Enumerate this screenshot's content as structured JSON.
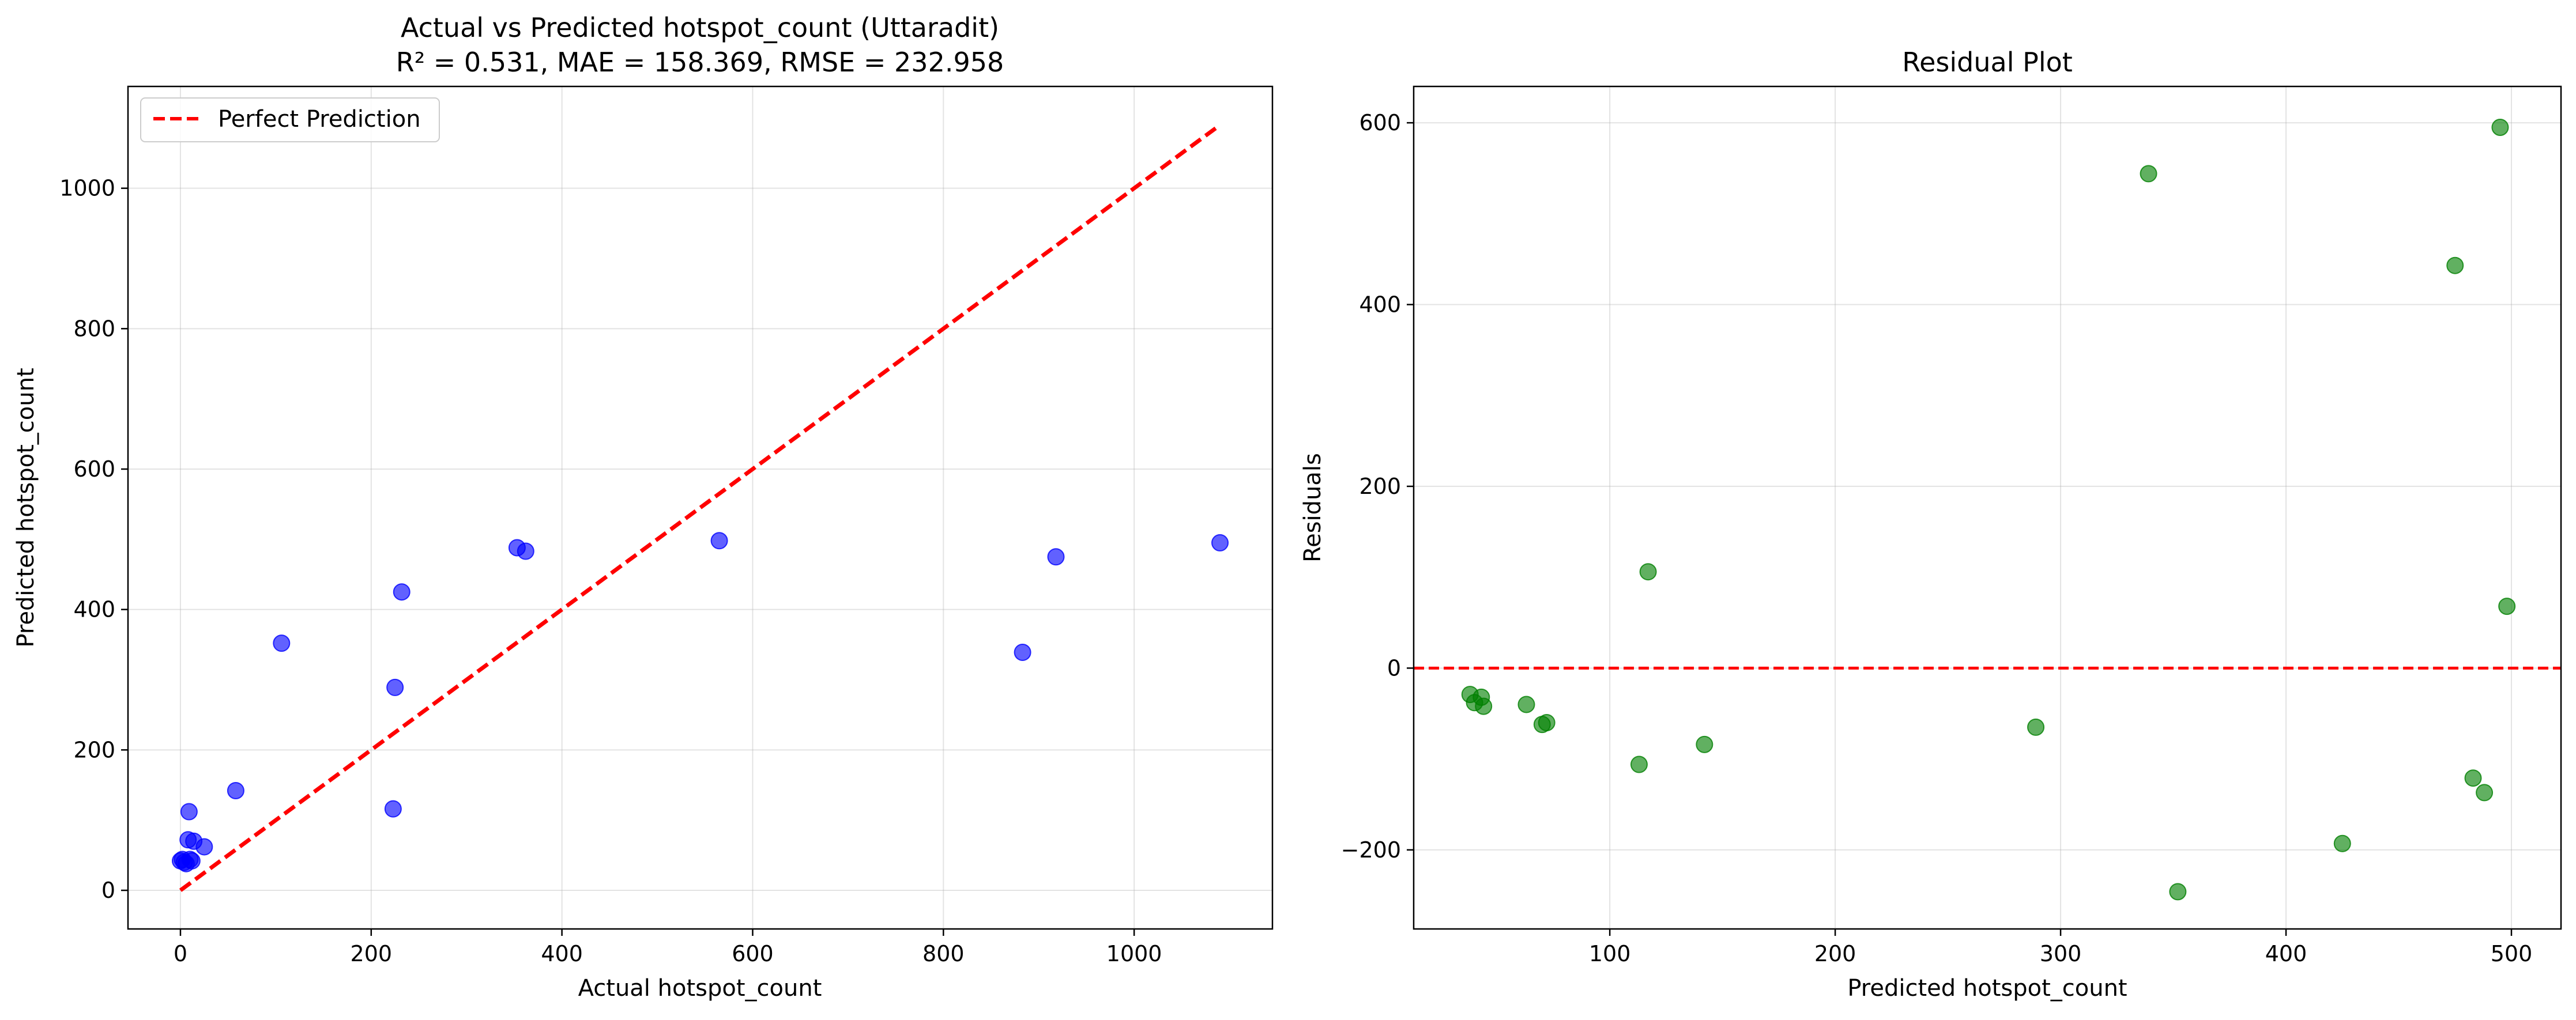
{
  "chart_data": [
    {
      "type": "scatter",
      "title": "Actual vs Predicted hotspot_count (Uttaradit)",
      "subtitle": "R² = 0.531, MAE = 158.369, RMSE = 232.958",
      "xlabel": "Actual hotspot_count",
      "ylabel": "Predicted hotspot_count",
      "xlim": [
        -55,
        1145
      ],
      "ylim": [
        -55,
        1145
      ],
      "xticks": [
        0,
        200,
        400,
        600,
        800,
        1000
      ],
      "yticks": [
        0,
        200,
        400,
        600,
        800,
        1000
      ],
      "grid": true,
      "legend": {
        "placement": "top-left",
        "entries": [
          "Perfect Prediction"
        ]
      },
      "reference_line": {
        "name": "Perfect Prediction",
        "from": [
          0,
          0
        ],
        "to": [
          1090,
          1090
        ],
        "color": "#ff0000",
        "style": "dashed"
      },
      "point_color": "#0000ff",
      "points": [
        {
          "x": 0,
          "y": 42
        },
        {
          "x": 2,
          "y": 44
        },
        {
          "x": 4,
          "y": 40
        },
        {
          "x": 6,
          "y": 38
        },
        {
          "x": 8,
          "y": 72
        },
        {
          "x": 9,
          "y": 112
        },
        {
          "x": 10,
          "y": 44
        },
        {
          "x": 12,
          "y": 42
        },
        {
          "x": 14,
          "y": 70
        },
        {
          "x": 25,
          "y": 62
        },
        {
          "x": 58,
          "y": 142
        },
        {
          "x": 106,
          "y": 352
        },
        {
          "x": 223,
          "y": 116
        },
        {
          "x": 225,
          "y": 289
        },
        {
          "x": 232,
          "y": 425
        },
        {
          "x": 353,
          "y": 488
        },
        {
          "x": 362,
          "y": 483
        },
        {
          "x": 565,
          "y": 498
        },
        {
          "x": 883,
          "y": 339
        },
        {
          "x": 918,
          "y": 475
        },
        {
          "x": 1090,
          "y": 495
        }
      ]
    },
    {
      "type": "scatter",
      "title": "Residual Plot",
      "xlabel": "Predicted hotspot_count",
      "ylabel": "Residuals",
      "xlim": [
        13,
        522
      ],
      "ylim": [
        -287,
        640
      ],
      "xticks": [
        100,
        200,
        300,
        400,
        500
      ],
      "yticks": [
        -200,
        0,
        200,
        400,
        600
      ],
      "grid": true,
      "reference_line": {
        "y": 0,
        "color": "#ff0000",
        "style": "dashed"
      },
      "point_color": "#008000",
      "points": [
        {
          "x": 38,
          "y": -29
        },
        {
          "x": 40,
          "y": -38
        },
        {
          "x": 43,
          "y": -32
        },
        {
          "x": 44,
          "y": -42
        },
        {
          "x": 63,
          "y": -40
        },
        {
          "x": 70,
          "y": -62
        },
        {
          "x": 72,
          "y": -60
        },
        {
          "x": 113,
          "y": -106
        },
        {
          "x": 117,
          "y": 106
        },
        {
          "x": 142,
          "y": -84
        },
        {
          "x": 289,
          "y": -65
        },
        {
          "x": 339,
          "y": 544
        },
        {
          "x": 352,
          "y": -246
        },
        {
          "x": 425,
          "y": -193
        },
        {
          "x": 475,
          "y": 443
        },
        {
          "x": 483,
          "y": -121
        },
        {
          "x": 488,
          "y": -137
        },
        {
          "x": 495,
          "y": 595
        },
        {
          "x": 498,
          "y": 68
        }
      ]
    }
  ]
}
